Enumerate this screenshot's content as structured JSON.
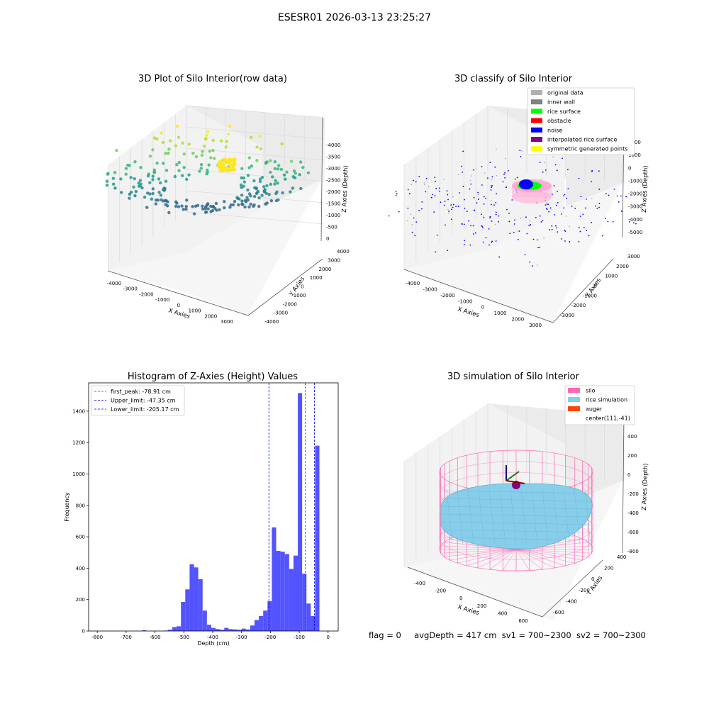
{
  "figure_title": "ESESR01 2026-03-13 23:25:27",
  "status_line": {
    "flag": "flag = 0",
    "avg_depth": "avgDepth = 417 cm",
    "sv1": "sv1 = 700~2300",
    "sv2": "sv2 = 700~2300"
  },
  "chart_data": [
    {
      "type": "scatter3d",
      "title": "3D Plot of Silo Interior(row data)",
      "xlabel": "X Axies",
      "ylabel": "Y Axies",
      "zlabel": "Z Axies (Depth)",
      "x_ticks": [
        -4000,
        -3000,
        -2000,
        -1000,
        0,
        1000,
        2000,
        3000
      ],
      "y_ticks": [
        -4000,
        -3000,
        -2000,
        -1000,
        0,
        1000,
        2000,
        3000,
        4000
      ],
      "z_ticks": [
        -4000,
        -3500,
        -3000,
        -2500,
        -2000,
        -1500,
        -1000,
        -500,
        0
      ],
      "colormap": "viridis"
    },
    {
      "type": "scatter3d",
      "title": "3D classify of Silo Interior",
      "xlabel": "X Axies",
      "ylabel": "Y Axies",
      "zlabel": "Z Axies (Depth)",
      "x_ticks": [
        -4000,
        -3000,
        -2000,
        -1000,
        0,
        1000,
        2000,
        3000
      ],
      "y_ticks": [
        -3000,
        -2000,
        -1000,
        0,
        1000,
        2000,
        3000
      ],
      "z_ticks": [
        -5000,
        -4000,
        -3000,
        -2000,
        -1000,
        0,
        1000,
        2000
      ],
      "legend_position": "top-right",
      "legend": [
        {
          "label": "original data",
          "color": "#b0b0b0"
        },
        {
          "label": "inner wall",
          "color": "#808080"
        },
        {
          "label": "rice surface",
          "color": "#00ff00"
        },
        {
          "label": "obstacle",
          "color": "#ff0000"
        },
        {
          "label": "noise",
          "color": "#0000ff"
        },
        {
          "label": "interpolated rice surface",
          "color": "#800080"
        },
        {
          "label": "symmetric generated points",
          "color": "#ffff00"
        }
      ]
    },
    {
      "type": "bar",
      "title": "Histogram of Z-Axies (Height) Values",
      "xlabel": "Depth (cm)",
      "ylabel": "Frequency",
      "xlim": [
        -830,
        35
      ],
      "ylim": [
        0,
        1580
      ],
      "x_ticks": [
        -800,
        -700,
        -600,
        -500,
        -400,
        -300,
        -200,
        -100,
        0
      ],
      "y_ticks": [
        0,
        200,
        400,
        600,
        800,
        1000,
        1200,
        1400
      ],
      "bar_color": "#4b4bff",
      "bin_width": 15,
      "bins": [
        {
          "x": -645,
          "y": 5
        },
        {
          "x": -570,
          "y": 3
        },
        {
          "x": -555,
          "y": 8
        },
        {
          "x": -540,
          "y": 25
        },
        {
          "x": -525,
          "y": 30
        },
        {
          "x": -510,
          "y": 185
        },
        {
          "x": -495,
          "y": 265
        },
        {
          "x": -480,
          "y": 425
        },
        {
          "x": -465,
          "y": 405
        },
        {
          "x": -450,
          "y": 330
        },
        {
          "x": -435,
          "y": 130
        },
        {
          "x": -420,
          "y": 40
        },
        {
          "x": -405,
          "y": 20
        },
        {
          "x": -390,
          "y": 12
        },
        {
          "x": -375,
          "y": 8
        },
        {
          "x": -360,
          "y": 20
        },
        {
          "x": -345,
          "y": 12
        },
        {
          "x": -330,
          "y": 10
        },
        {
          "x": -315,
          "y": 8
        },
        {
          "x": -300,
          "y": 15
        },
        {
          "x": -285,
          "y": 10
        },
        {
          "x": -270,
          "y": 35
        },
        {
          "x": -255,
          "y": 70
        },
        {
          "x": -240,
          "y": 95
        },
        {
          "x": -225,
          "y": 130
        },
        {
          "x": -210,
          "y": 190
        },
        {
          "x": -195,
          "y": 660
        },
        {
          "x": -180,
          "y": 510
        },
        {
          "x": -165,
          "y": 505
        },
        {
          "x": -150,
          "y": 490
        },
        {
          "x": -135,
          "y": 395
        },
        {
          "x": -120,
          "y": 480
        },
        {
          "x": -105,
          "y": 1515
        },
        {
          "x": -90,
          "y": 365
        },
        {
          "x": -75,
          "y": 175
        },
        {
          "x": -60,
          "y": 95
        },
        {
          "x": -45,
          "y": 1180
        }
      ],
      "vlines": [
        {
          "label": "first_peak: -78.91 cm",
          "x": -78.91,
          "color": "#ff0000"
        },
        {
          "label": "Upper_limit: -47.35 cm",
          "x": -47.35,
          "color": "#0000ff"
        },
        {
          "label": "Lower_limit: -205.17 cm",
          "x": -205.17,
          "color": "#0000ff"
        }
      ],
      "legend_position": "top-left"
    },
    {
      "type": "surface3d",
      "title": "3D simulation of Silo Interior",
      "xlabel": "X Axies",
      "ylabel": "Y Axies",
      "zlabel": "Z Axies (Depth)",
      "x_ticks": [
        -400,
        -200,
        0,
        200,
        400,
        600
      ],
      "y_ticks": [
        -600,
        -400,
        -200,
        0,
        200,
        400
      ],
      "z_ticks": [
        -800,
        -600,
        -400,
        -200,
        0,
        200,
        400
      ],
      "legend_position": "top-right",
      "legend": [
        {
          "label": "silo",
          "color": "#ff69b4"
        },
        {
          "label": "rice simulation",
          "color": "#87ceeb"
        },
        {
          "label": "auger",
          "color": "#ff4500"
        },
        {
          "label": "center(111,-41)",
          "color": ""
        }
      ]
    }
  ]
}
